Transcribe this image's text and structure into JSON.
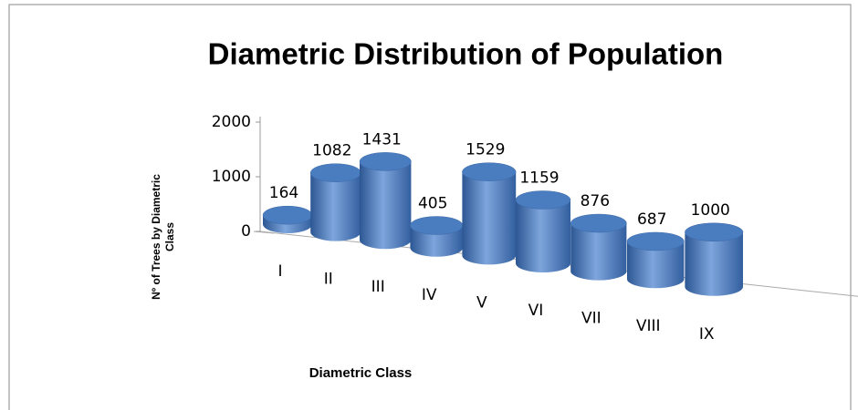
{
  "chart_data": {
    "type": "bar3d",
    "title": "Diametric Distribution  of Population",
    "y_label": [
      "Nº of Trees by Diametric",
      "Class"
    ],
    "x_label": "Diametric Class",
    "categories": [
      "I",
      "II",
      "III",
      "IV",
      "V",
      "VI",
      "VII",
      "VIII",
      "IX"
    ],
    "values": [
      164,
      1082,
      1431,
      405,
      1529,
      1159,
      876,
      687,
      1000
    ],
    "color": "#4a7cc0",
    "ylim": [
      0,
      2000
    ],
    "yticks": [
      0,
      1000,
      2000
    ]
  }
}
